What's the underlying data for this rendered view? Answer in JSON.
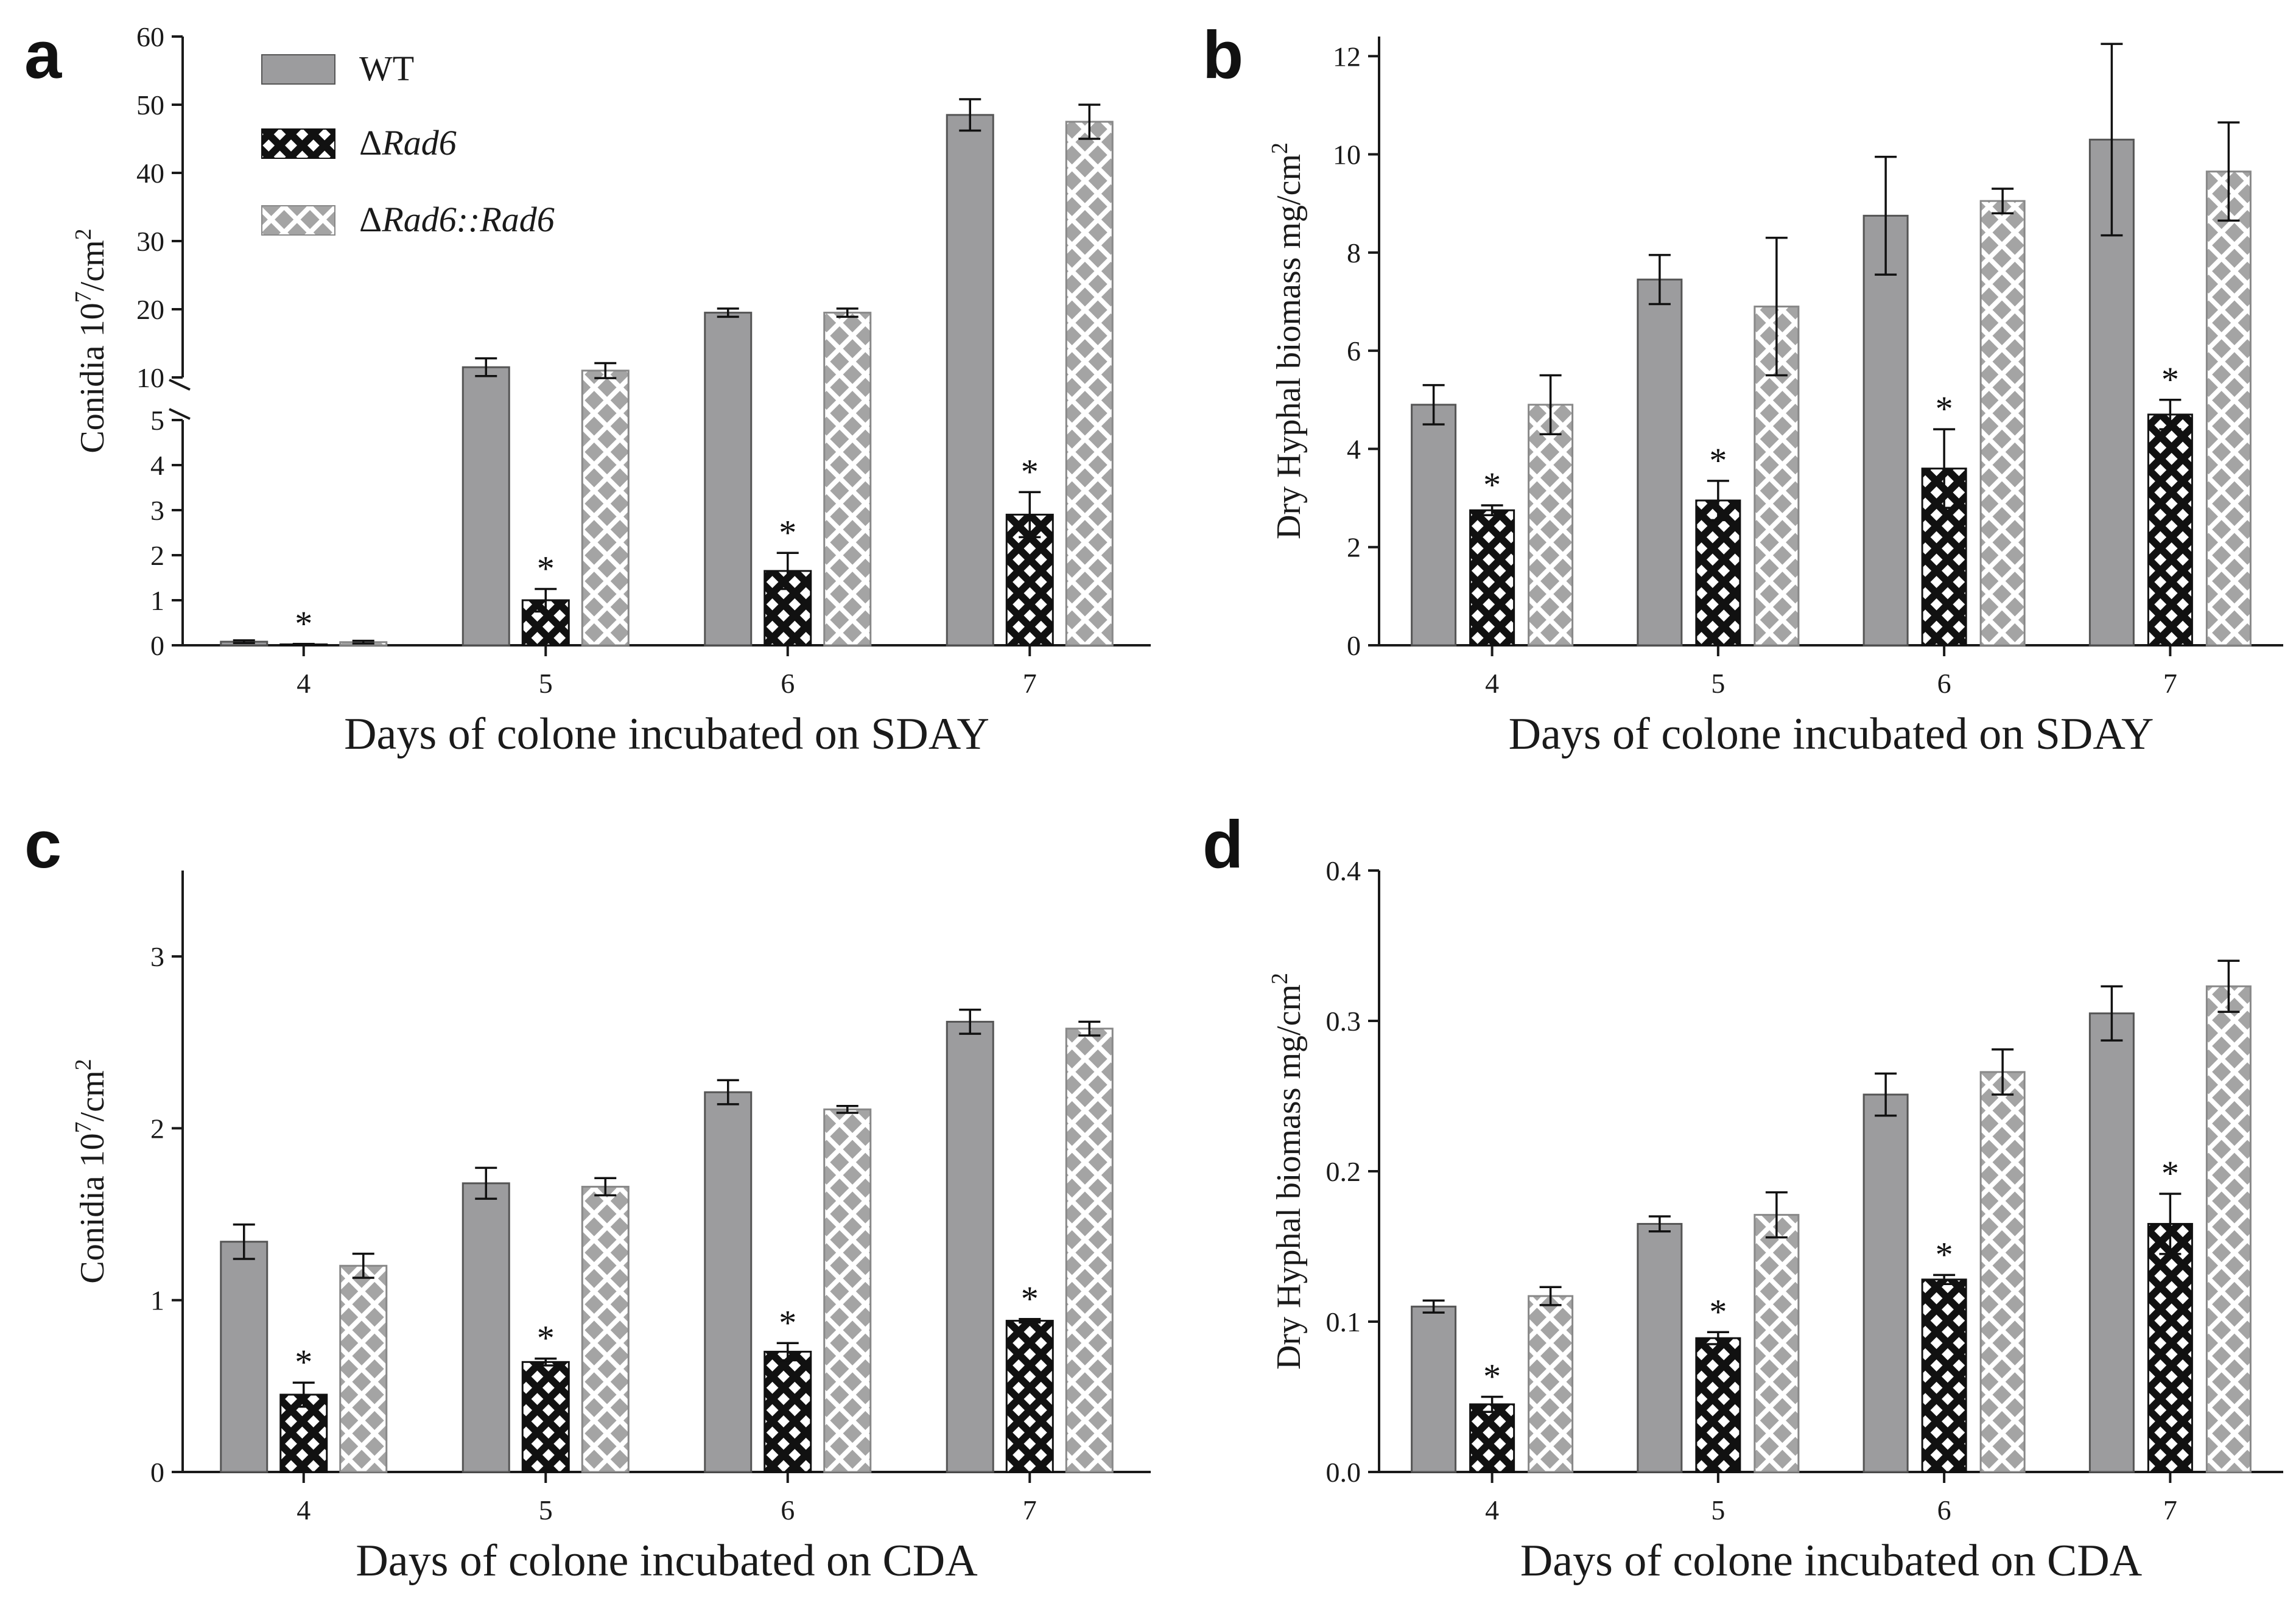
{
  "colors": {
    "wt": "#9c9c9e",
    "mutant_bg": "#111111",
    "mutant_fg": "#ffffff",
    "comp_bg": "#ffffff",
    "comp_fg": "#a4a4a4",
    "axis": "#1a1a1a"
  },
  "legend": [
    {
      "label": "WT",
      "prefix": "",
      "italic": ""
    },
    {
      "label": "",
      "prefix": "Δ",
      "italic": "Rad6"
    },
    {
      "label": "",
      "prefix": "Δ",
      "italic": "Rad6::Rad6"
    }
  ],
  "star": "*",
  "chart_data": [
    {
      "panel": "a",
      "type": "bar",
      "title": "",
      "xlabel": "Days of colone incubated on SDAY",
      "ylabel": "Conidia 10",
      "ylabel_sup": "7",
      "ylabel_tail": "/cm",
      "ylabel_sup2": "2",
      "categories": [
        "4",
        "5",
        "6",
        "7"
      ],
      "series": [
        {
          "name": "WT",
          "values": [
            0.08,
            11.5,
            19.5,
            48.5
          ],
          "errors": [
            0.03,
            1.3,
            0.6,
            2.3
          ]
        },
        {
          "name": "ΔRad6",
          "values": [
            0.02,
            1.0,
            1.65,
            2.9
          ],
          "errors": [
            0.01,
            0.25,
            0.4,
            0.5
          ],
          "significant": [
            true,
            true,
            true,
            true
          ]
        },
        {
          "name": "ΔRad6::Rad6",
          "values": [
            0.07,
            11.0,
            19.5,
            47.5
          ],
          "errors": [
            0.03,
            1.1,
            0.6,
            2.5
          ]
        }
      ],
      "axis_break": {
        "lower": [
          0,
          5
        ],
        "upper": [
          10,
          60
        ]
      },
      "yticks_lower": [
        "0",
        "1",
        "2",
        "3",
        "4",
        "5"
      ],
      "yticks_upper": [
        "10",
        "20",
        "30",
        "40",
        "50",
        "60"
      ]
    },
    {
      "panel": "b",
      "type": "bar",
      "title": "",
      "xlabel": "Days of colone incubated on SDAY",
      "ylabel": "Dry Hyphal biomass mg/cm",
      "ylabel_sup": "2",
      "categories": [
        "4",
        "5",
        "6",
        "7"
      ],
      "series": [
        {
          "name": "WT",
          "values": [
            4.9,
            7.45,
            8.75,
            10.3
          ],
          "errors": [
            0.4,
            0.5,
            1.2,
            1.95
          ]
        },
        {
          "name": "ΔRad6",
          "values": [
            2.75,
            2.95,
            3.6,
            4.7
          ],
          "errors": [
            0.1,
            0.4,
            0.8,
            0.3
          ],
          "significant": [
            true,
            true,
            true,
            true
          ]
        },
        {
          "name": "ΔRad6::Rad6",
          "values": [
            4.9,
            6.9,
            9.05,
            9.65
          ],
          "errors": [
            0.6,
            1.4,
            0.25,
            1.0
          ]
        }
      ],
      "ylim": [
        0,
        12.4
      ],
      "yticks": [
        "0",
        "2",
        "4",
        "6",
        "8",
        "10",
        "12"
      ]
    },
    {
      "panel": "c",
      "type": "bar",
      "title": "",
      "xlabel": "Days of colone incubated on CDA",
      "ylabel": "Conidia 10",
      "ylabel_sup": "7",
      "ylabel_tail": "/cm",
      "ylabel_sup2": "2",
      "categories": [
        "4",
        "5",
        "6",
        "7"
      ],
      "series": [
        {
          "name": "WT",
          "values": [
            1.34,
            1.68,
            2.21,
            2.62
          ],
          "errors": [
            0.1,
            0.09,
            0.07,
            0.07
          ]
        },
        {
          "name": "ΔRad6",
          "values": [
            0.45,
            0.64,
            0.7,
            0.88
          ],
          "errors": [
            0.07,
            0.02,
            0.05,
            0.01
          ],
          "significant": [
            true,
            true,
            true,
            true
          ]
        },
        {
          "name": "ΔRad6::Rad6",
          "values": [
            1.2,
            1.66,
            2.11,
            2.58
          ],
          "errors": [
            0.07,
            0.05,
            0.02,
            0.04
          ]
        }
      ],
      "ylim": [
        0,
        3.5
      ],
      "yticks": [
        "0",
        "1",
        "2",
        "3"
      ]
    },
    {
      "panel": "d",
      "type": "bar",
      "title": "",
      "xlabel": "Days of colone incubated on CDA",
      "ylabel": "Dry Hyphal biomass mg/cm",
      "ylabel_sup": "2",
      "categories": [
        "4",
        "5",
        "6",
        "7"
      ],
      "series": [
        {
          "name": "WT",
          "values": [
            0.11,
            0.165,
            0.251,
            0.305
          ],
          "errors": [
            0.004,
            0.005,
            0.014,
            0.018
          ]
        },
        {
          "name": "ΔRad6",
          "values": [
            0.045,
            0.089,
            0.128,
            0.165
          ],
          "errors": [
            0.005,
            0.004,
            0.003,
            0.02
          ],
          "significant": [
            true,
            true,
            true,
            true
          ]
        },
        {
          "name": "ΔRad6::Rad6",
          "values": [
            0.117,
            0.171,
            0.266,
            0.323
          ],
          "errors": [
            0.006,
            0.015,
            0.015,
            0.017
          ]
        }
      ],
      "ylim": [
        0,
        0.4
      ],
      "yticks": [
        "0.0",
        "0.1",
        "0.2",
        "0.3",
        "0.4"
      ]
    }
  ]
}
